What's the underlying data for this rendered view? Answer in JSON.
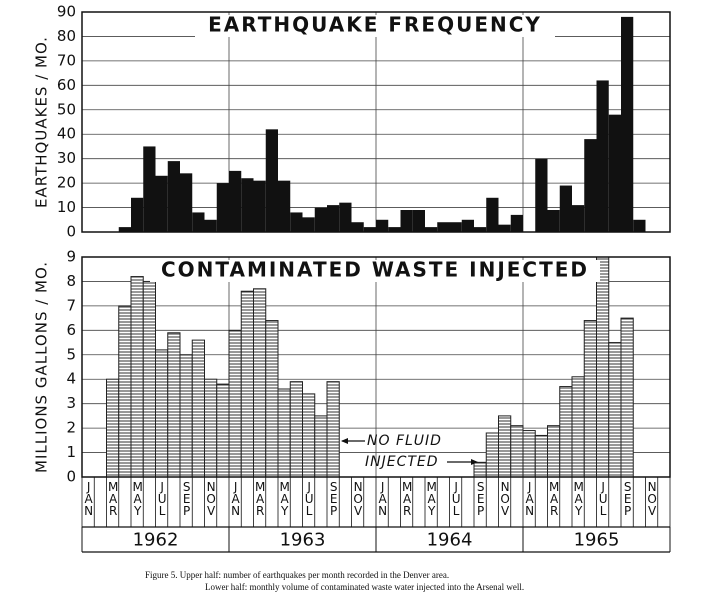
{
  "chart_data": [
    {
      "type": "bar",
      "title": "EARTHQUAKE FREQUENCY",
      "y_label": "EARTHQUAKES / MO.",
      "color": "#111111",
      "hatch": false,
      "values": [
        0,
        0,
        0,
        2,
        14,
        35,
        23,
        29,
        24,
        8,
        5,
        20,
        25,
        22,
        21,
        42,
        21,
        8,
        6,
        10,
        11,
        12,
        4,
        2,
        5,
        2,
        9,
        9,
        2,
        4,
        4,
        5,
        2,
        14,
        3,
        7,
        0,
        30,
        9,
        19,
        11,
        38,
        62,
        48,
        88,
        5,
        0,
        0
      ],
      "ylim": [
        0,
        90
      ],
      "yticks": [
        0,
        10,
        20,
        30,
        40,
        50,
        60,
        70,
        80,
        90
      ],
      "grid": true
    },
    {
      "type": "bar",
      "title": "CONTAMINATED WASTE INJECTED",
      "y_label": "MILLIONS GALLONS / MO.",
      "color": "#222222",
      "hatch": true,
      "values": [
        0,
        0,
        4,
        7,
        8.2,
        8,
        5.2,
        5.9,
        5,
        5.6,
        4,
        3.8,
        6,
        7.6,
        7.7,
        6.4,
        3.6,
        3.9,
        3.4,
        2.5,
        3.9,
        0,
        0,
        0,
        0,
        0,
        0,
        0,
        0,
        0,
        0,
        0,
        0.6,
        1.8,
        2.5,
        2.1,
        1.9,
        1.7,
        2.1,
        3.7,
        4.1,
        6.4,
        9,
        5.5,
        6.5,
        0,
        0,
        0
      ],
      "ylim": [
        0,
        9
      ],
      "yticks": [
        0,
        1,
        2,
        3,
        4,
        5,
        6,
        7,
        8,
        9
      ],
      "grid": true,
      "annotation": [
        "NO FLUID",
        "INJECTED"
      ]
    }
  ],
  "x_axis": {
    "months": [
      "JAN",
      null,
      "MAR",
      null,
      "MAY",
      null,
      "JUL",
      null,
      "SEP",
      null,
      "NOV",
      null,
      "JAN",
      null,
      "MAR",
      null,
      "MAY",
      null,
      "JUL",
      null,
      "SEP",
      null,
      "NOV",
      null,
      "JAN",
      null,
      "MAR",
      null,
      "MAY",
      null,
      "JUL",
      null,
      "SEP",
      null,
      "NOV",
      null,
      "JAN",
      null,
      "MAR",
      null,
      "MAY",
      null,
      "JUL",
      null,
      "SEP",
      null,
      "NOV",
      null
    ],
    "years": [
      "1962",
      "1963",
      "1964",
      "1965"
    ]
  },
  "caption": [
    "Figure 5.   Upper half:  number of earthquakes per month recorded in the Denver area.",
    "Lower half:  monthly volume of contaminated waste water injected into the Arsenal well."
  ]
}
